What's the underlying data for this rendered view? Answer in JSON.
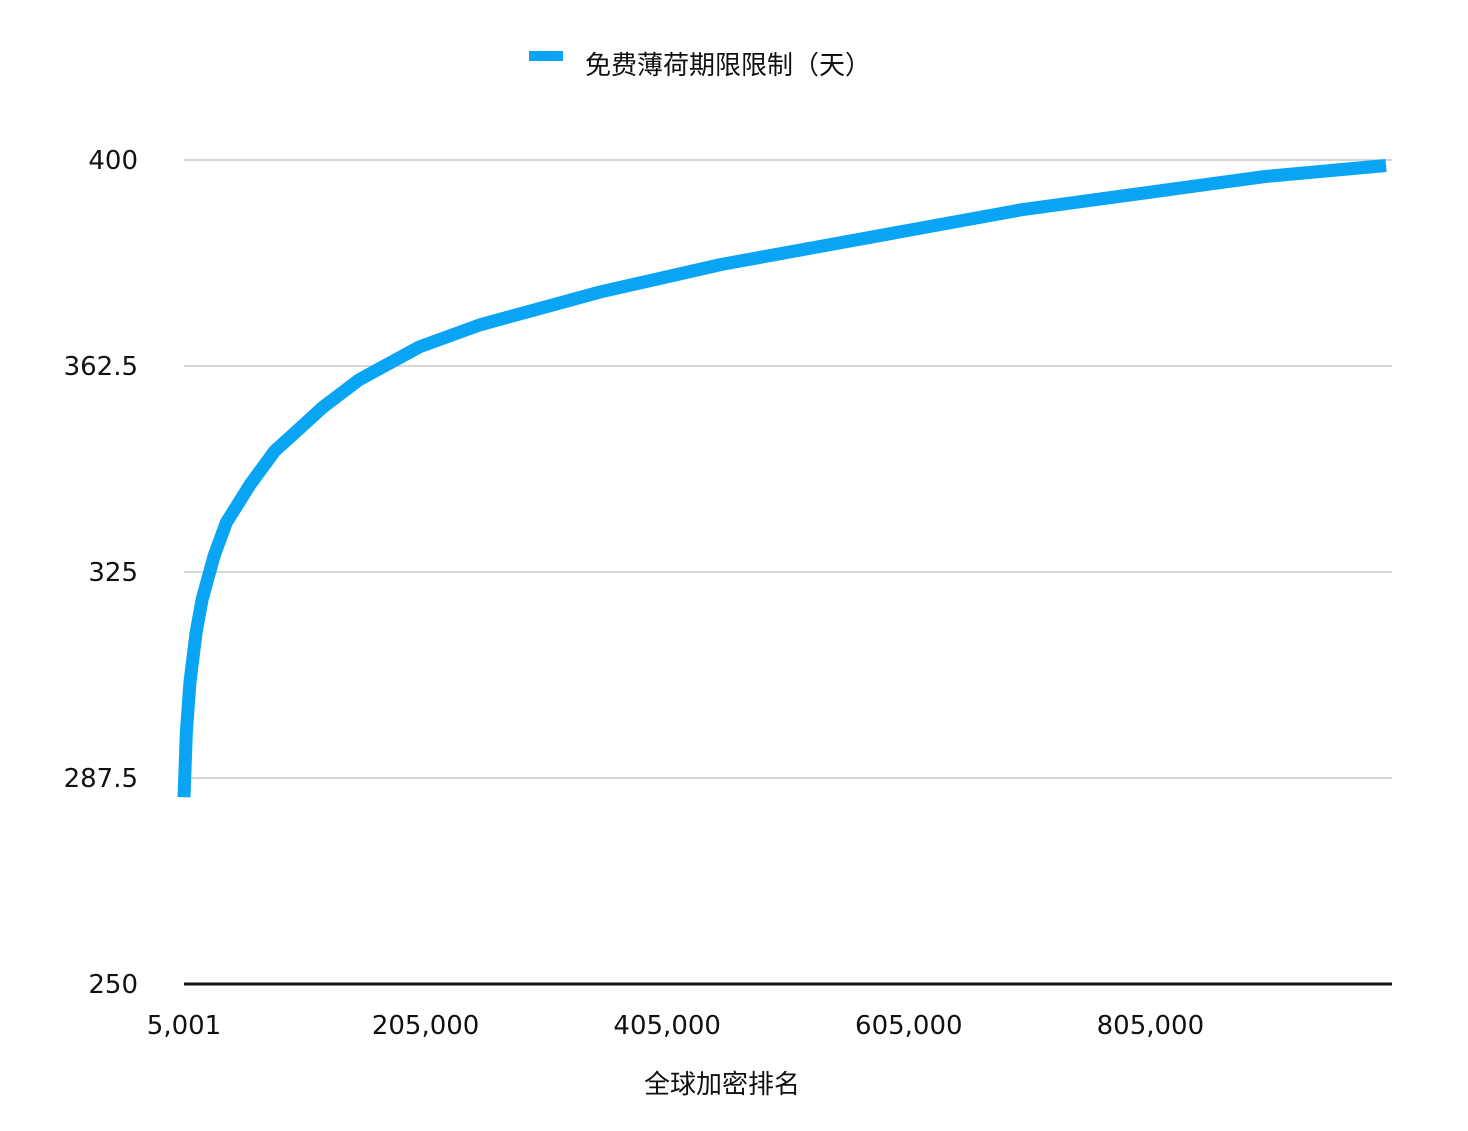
{
  "chart_data": {
    "type": "line",
    "legend": {
      "placement": "top-center",
      "label": "免费薄荷期限限制（天）"
    },
    "series": [
      {
        "name": "免费薄荷期限限制（天）",
        "color": "#0AA4F5",
        "x": [
          5001,
          7000,
          10000,
          15000,
          20000,
          30000,
          40000,
          60000,
          80000,
          100000,
          120000,
          150000,
          200000,
          250000,
          300000,
          350000,
          400000,
          450000,
          500000,
          550000,
          600000,
          650000,
          700000,
          750000,
          800000,
          850000,
          900000,
          950000,
          1000000
        ],
        "y": [
          284,
          296,
          305,
          314,
          320,
          328,
          334,
          341,
          347,
          351,
          355,
          360,
          366,
          370,
          373,
          376,
          378.5,
          381,
          383,
          385,
          387,
          389,
          391,
          392.5,
          394,
          395.5,
          397,
          398,
          399
        ]
      }
    ],
    "xlabel": "全球加密排名",
    "ylabel": "",
    "xlim": [
      5001,
      1005000
    ],
    "ylim": [
      250,
      400
    ],
    "xticks": [
      5001,
      205000,
      405000,
      605000,
      805000
    ],
    "xtick_labels": [
      "5,001",
      "205,000",
      "405,000",
      "605,000",
      "805,000"
    ],
    "yticks": [
      250,
      287.5,
      325,
      362.5,
      400
    ],
    "ytick_labels": [
      "250",
      "287.5",
      "325",
      "362.5",
      "400"
    ],
    "grid": true
  }
}
